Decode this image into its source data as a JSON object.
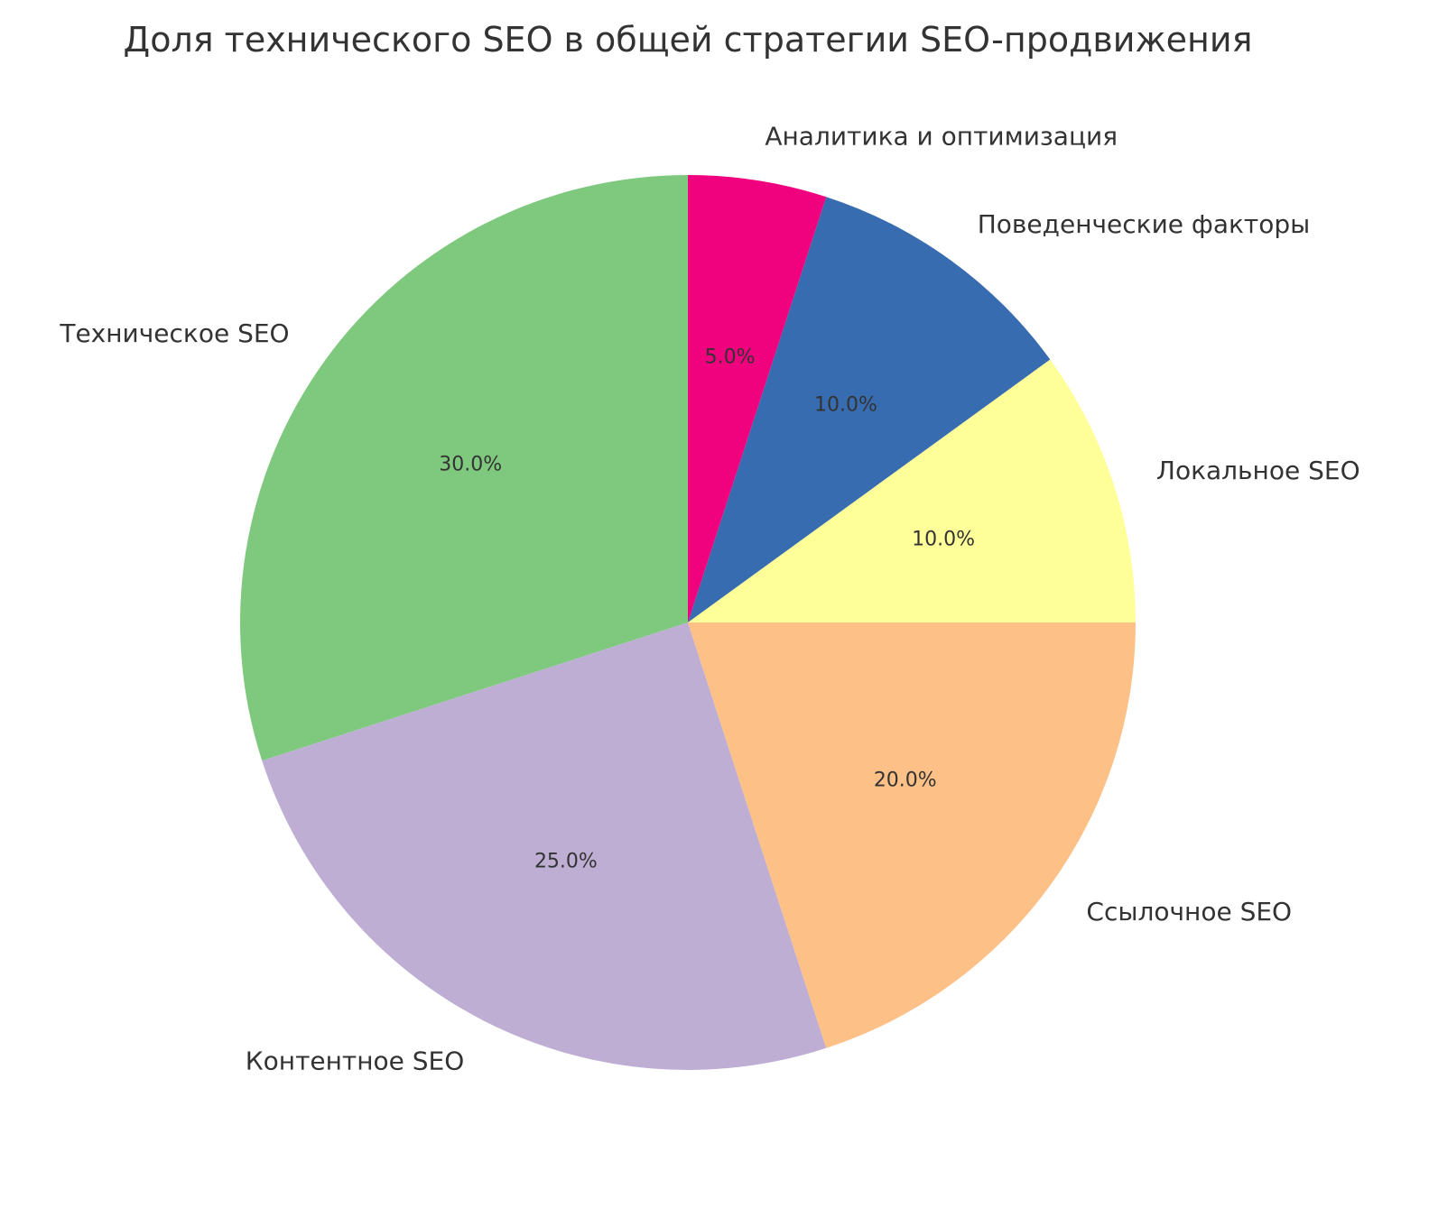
{
  "chart_data": {
    "type": "pie",
    "title": "Доля технического SEO в общей стратегии SEO-продвижения",
    "categories": [
      "Техническое SEO",
      "Контентное SEO",
      "Ссылочное SEO",
      "Локальное SEO",
      "Поведенческие факторы",
      "Аналитика и оптимизация"
    ],
    "values": [
      30,
      25,
      20,
      10,
      10,
      5
    ],
    "value_labels": [
      "30.0%",
      "25.0%",
      "20.0%",
      "10.0%",
      "10.0%",
      "5.0%"
    ],
    "colors": [
      "#7fc97f",
      "#beaed4",
      "#fdc086",
      "#ffff99",
      "#386cb0",
      "#f0027f"
    ],
    "start_angle_deg": 90,
    "direction": "counterclockwise",
    "legend": "none"
  }
}
